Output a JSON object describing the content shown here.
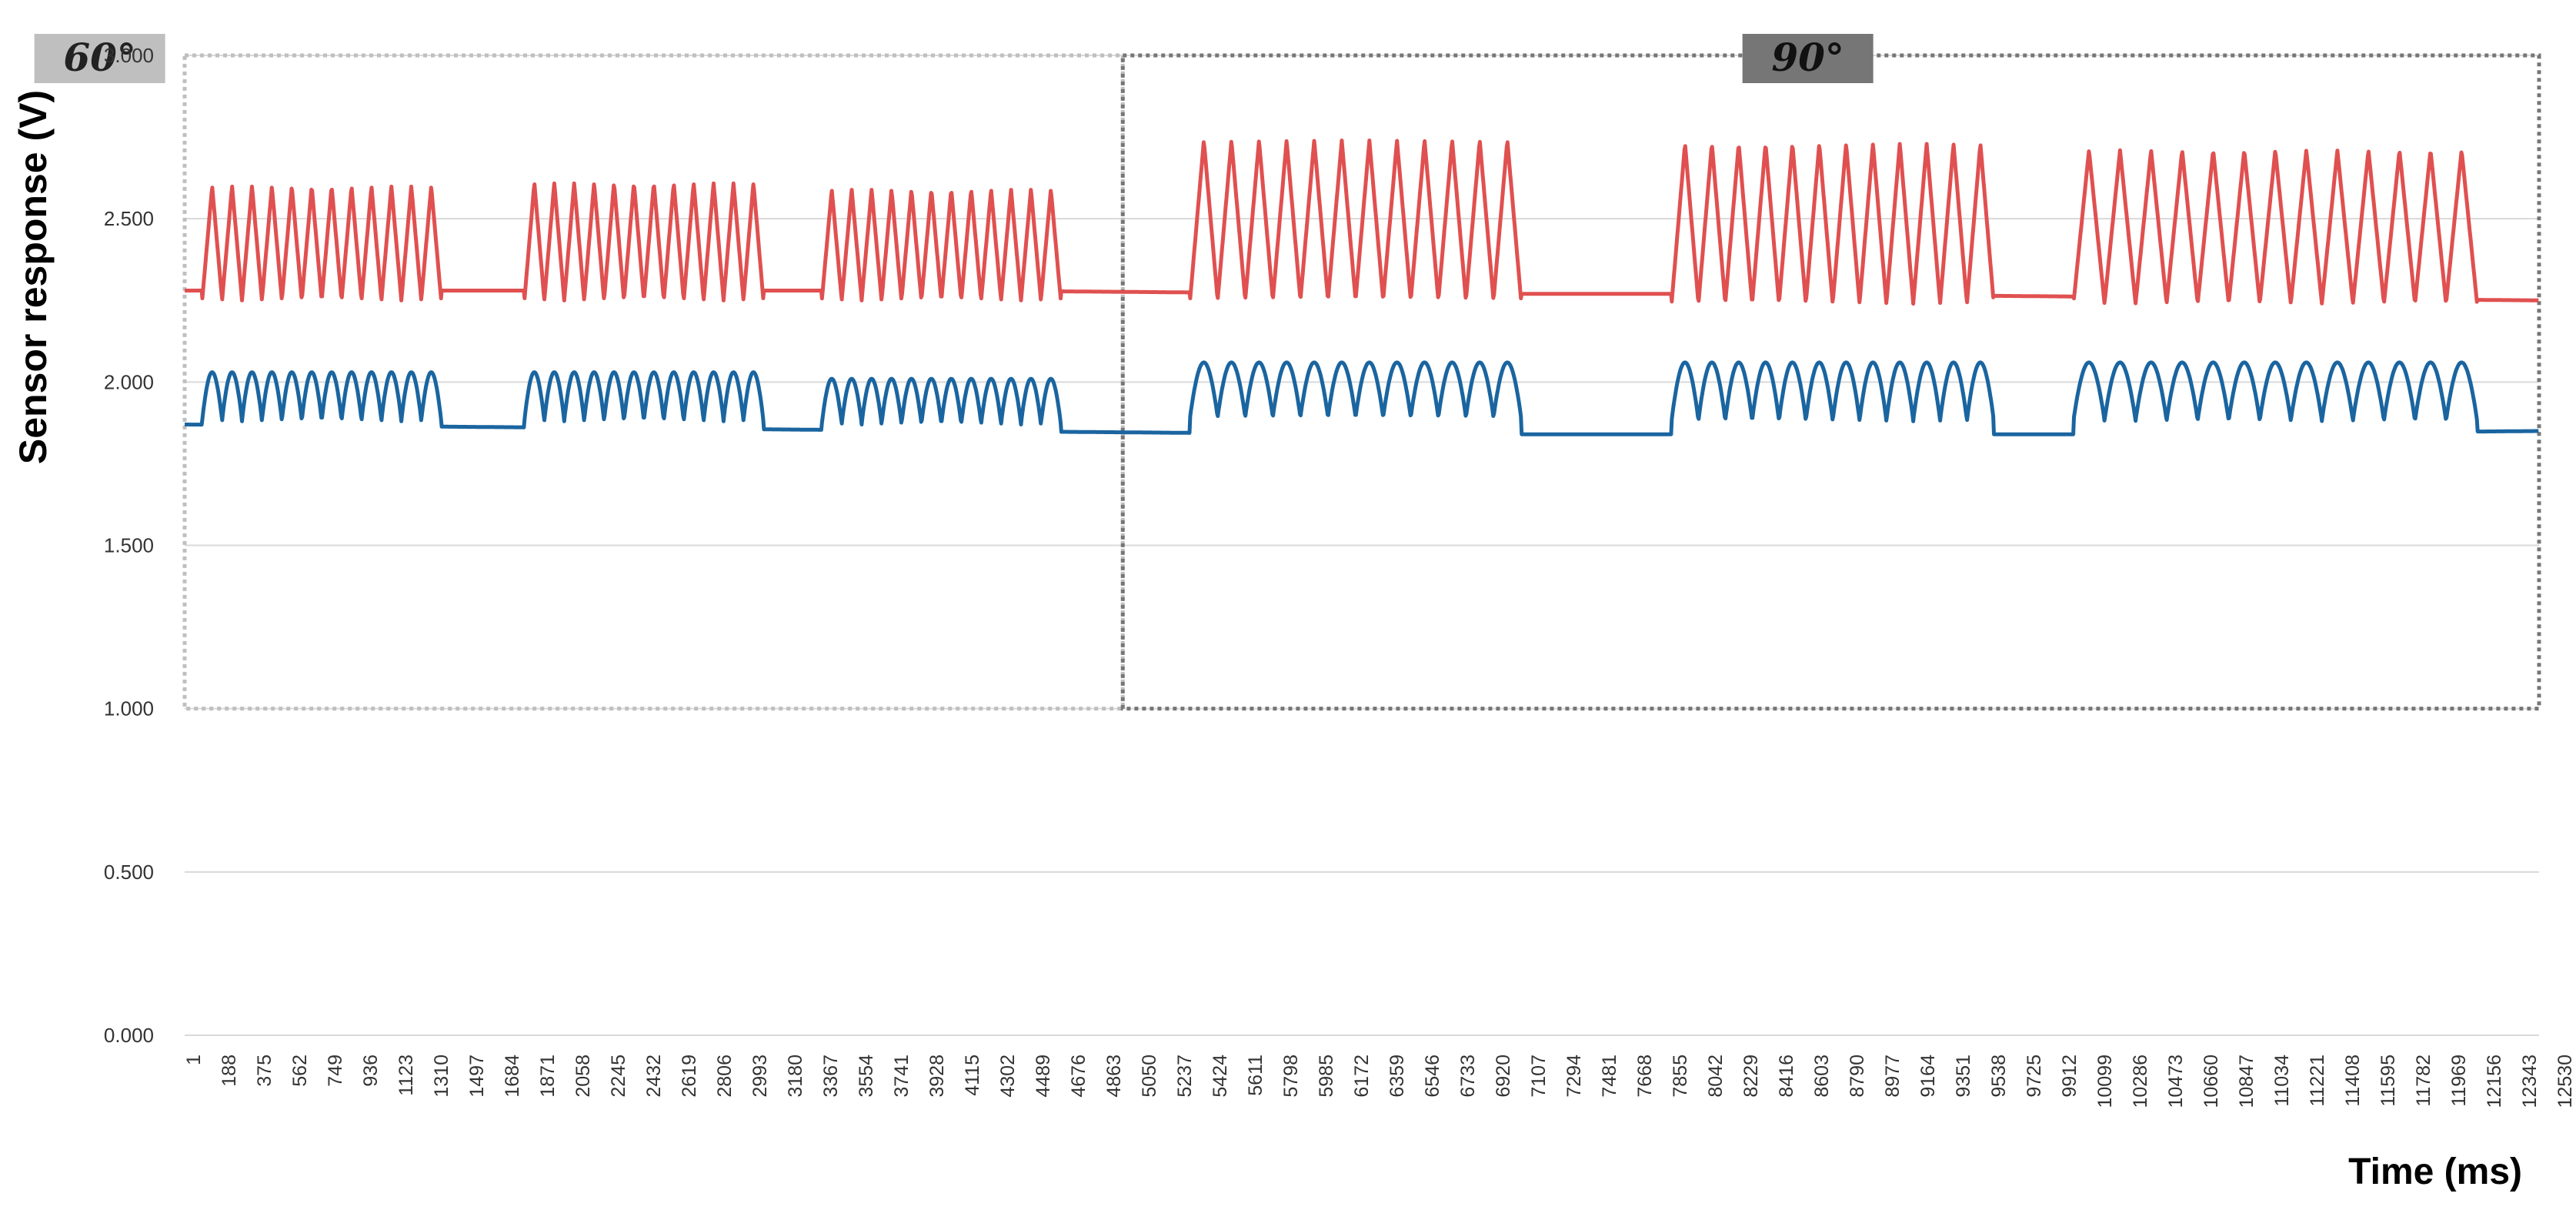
{
  "chart_data": {
    "type": "line",
    "xlabel": "Time (ms)",
    "ylabel": "Sensor response (V)",
    "ylim": [
      0,
      3
    ],
    "yticks": [
      "0.000",
      "0.500",
      "1.000",
      "1.500",
      "2.000",
      "2.500",
      "3.000"
    ],
    "xticks": [
      "1",
      "188",
      "375",
      "562",
      "749",
      "936",
      "1123",
      "1310",
      "1497",
      "1684",
      "1871",
      "2058",
      "2245",
      "2432",
      "2619",
      "2806",
      "2993",
      "3180",
      "3367",
      "3554",
      "3741",
      "3928",
      "4115",
      "4302",
      "4489",
      "4676",
      "4863",
      "5050",
      "5237",
      "5424",
      "5611",
      "5798",
      "5985",
      "6172",
      "6359",
      "6546",
      "6733",
      "6920",
      "7107",
      "7294",
      "7481",
      "7668",
      "7855",
      "8042",
      "8229",
      "8416",
      "8603",
      "8790",
      "8977",
      "9164",
      "9351",
      "9538",
      "9725",
      "9912",
      "10099",
      "10286",
      "10473",
      "10660",
      "10847",
      "11034",
      "11221",
      "11408",
      "11595",
      "11782",
      "11969",
      "12156",
      "12343",
      "12530",
      "12717"
    ],
    "xlim": [
      1,
      13300
    ],
    "grid": true,
    "regions": [
      {
        "label": "60°",
        "x_start": 1,
        "x_end": 5300,
        "y_start": 1.0,
        "y_end": 3.0,
        "color": "#bfbfbf"
      },
      {
        "label": "90°",
        "x_start": 5300,
        "x_end": 13300,
        "y_start": 1.0,
        "y_end": 3.0,
        "color": "#767676"
      }
    ],
    "series": [
      {
        "color": "#e05050",
        "baseline": [
          2.28,
          2.28,
          2.28,
          2.27,
          2.27,
          2.26,
          2.25
        ],
        "segments": [
          {
            "start": 100,
            "end": 1450,
            "cycles": 12,
            "low": 2.25,
            "high": 2.6
          },
          {
            "start": 1920,
            "end": 3270,
            "cycles": 12,
            "low": 2.25,
            "high": 2.61
          },
          {
            "start": 3600,
            "end": 4950,
            "cycles": 12,
            "low": 2.25,
            "high": 2.59
          },
          {
            "start": 5680,
            "end": 7550,
            "cycles": 12,
            "low": 2.25,
            "high": 2.74
          },
          {
            "start": 8400,
            "end": 10220,
            "cycles": 12,
            "low": 2.24,
            "high": 2.73
          },
          {
            "start": 10670,
            "end": 12950,
            "cycles": 13,
            "low": 2.24,
            "high": 2.71
          }
        ]
      },
      {
        "color": "#1a65a0",
        "baseline": [
          1.87,
          1.86,
          1.85,
          1.84,
          1.84,
          1.84,
          1.85
        ],
        "segments": [
          {
            "start": 100,
            "end": 1450,
            "cycles": 12,
            "low": 1.88,
            "high": 2.03
          },
          {
            "start": 1920,
            "end": 3270,
            "cycles": 12,
            "low": 1.88,
            "high": 2.03
          },
          {
            "start": 3600,
            "end": 4950,
            "cycles": 12,
            "low": 1.87,
            "high": 2.01
          },
          {
            "start": 5680,
            "end": 7550,
            "cycles": 12,
            "low": 1.89,
            "high": 2.06
          },
          {
            "start": 8400,
            "end": 10220,
            "cycles": 12,
            "low": 1.88,
            "high": 2.06
          },
          {
            "start": 10670,
            "end": 12950,
            "cycles": 13,
            "low": 1.88,
            "high": 2.06
          }
        ]
      }
    ]
  }
}
